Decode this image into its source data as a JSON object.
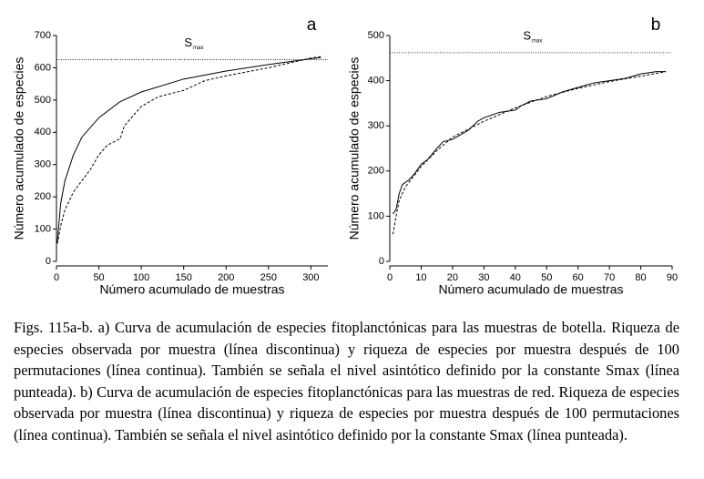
{
  "chart_data": [
    {
      "type": "line",
      "panel_label": "a",
      "xlabel": "Número acumulado de muestras",
      "ylabel": "Número acumulado de especies",
      "xlim": [
        0,
        320
      ],
      "xticks": [
        0,
        50,
        100,
        150,
        200,
        250,
        300
      ],
      "ylim": [
        0,
        700
      ],
      "yticks": [
        0,
        100,
        200,
        300,
        400,
        500,
        600,
        700
      ],
      "hline": {
        "value": 625,
        "label": "S",
        "label_sub": "max"
      },
      "series": [
        {
          "color": "#000000",
          "dashed": false,
          "x": [
            1,
            5,
            10,
            20,
            30,
            50,
            75,
            100,
            150,
            200,
            250,
            300,
            312
          ],
          "values": [
            60,
            180,
            250,
            330,
            385,
            445,
            495,
            525,
            565,
            590,
            610,
            628,
            632
          ]
        },
        {
          "color": "#000000",
          "dashed": true,
          "x": [
            1,
            5,
            10,
            20,
            30,
            40,
            50,
            60,
            75,
            80,
            100,
            120,
            150,
            175,
            200,
            250,
            300,
            312
          ],
          "values": [
            55,
            110,
            160,
            215,
            250,
            285,
            330,
            360,
            380,
            420,
            480,
            510,
            530,
            560,
            575,
            600,
            630,
            635
          ]
        }
      ]
    },
    {
      "type": "line",
      "panel_label": "b",
      "xlabel": "Número acumulado de muestras",
      "ylabel": "Número acumulado de especies",
      "xlim": [
        0,
        90
      ],
      "xticks": [
        0,
        10,
        20,
        30,
        40,
        50,
        60,
        70,
        80,
        90
      ],
      "ylim": [
        0,
        500
      ],
      "yticks": [
        0,
        100,
        200,
        300,
        400,
        500
      ],
      "hline": {
        "value": 462,
        "label": "S",
        "label_sub": "max"
      },
      "series": [
        {
          "color": "#000000",
          "dashed": false,
          "x": [
            1,
            2,
            3,
            4,
            6,
            8,
            10,
            12,
            15,
            17,
            20,
            25,
            28,
            30,
            35,
            40,
            42,
            45,
            50,
            55,
            60,
            65,
            70,
            75,
            80,
            85,
            88
          ],
          "values": [
            105,
            115,
            150,
            170,
            180,
            195,
            215,
            225,
            250,
            265,
            270,
            290,
            310,
            318,
            330,
            335,
            345,
            355,
            360,
            375,
            385,
            395,
            400,
            405,
            415,
            420,
            420
          ]
        },
        {
          "color": "#000000",
          "dashed": true,
          "x": [
            1,
            2,
            3,
            5,
            10,
            15,
            20,
            30,
            40,
            50,
            60,
            70,
            80,
            88
          ],
          "values": [
            60,
            100,
            135,
            165,
            210,
            245,
            275,
            310,
            340,
            365,
            383,
            398,
            410,
            420
          ]
        }
      ]
    }
  ],
  "caption": "Figs. 115a-b. a) Curva de acumulación de especies fitoplanctónicas para las muestras de botella. Riqueza de especies observada por muestra (línea discontinua) y riqueza de especies por muestra después de 100 permutaciones (línea continua). También se señala el nivel asintótico definido por la constante Smax (línea punteada). b) Curva de acumulación de especies fitoplanctónicas para las muestras de red. Riqueza de especies observada por muestra (línea discontinua) y riqueza de especies por muestra después de 100 permutaciones (línea continua). También se señala el nivel asintótico definido por la constante Smax (línea punteada)."
}
